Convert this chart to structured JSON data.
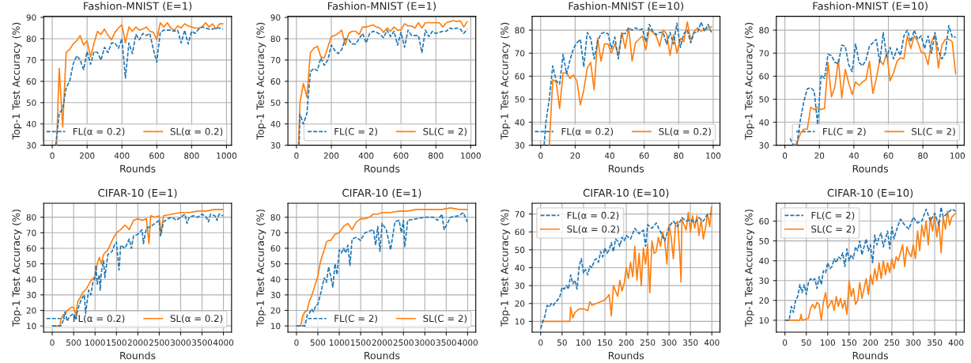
{
  "chart_data": [
    {
      "type": "line",
      "title": "Fashion-MNIST (E=1)",
      "xlabel": "Rounds",
      "ylabel": "Top-1 Test Accuracy (%)",
      "xlim": [
        -49,
        1029
      ],
      "ylim": [
        30,
        90.5
      ],
      "xticks": [
        0,
        200,
        400,
        600,
        800,
        1000
      ],
      "yticks": [
        30,
        40,
        50,
        60,
        70,
        80,
        90
      ],
      "grid": true,
      "legend": "lower right",
      "series": [
        {
          "name": "FL(α = 0.2)",
          "color": "#1f77b4",
          "line_style": "dashed",
          "x": [
            20,
            40,
            60,
            80,
            100,
            120,
            140,
            160,
            180,
            200,
            220,
            240,
            260,
            280,
            300,
            320,
            340,
            360,
            380,
            400,
            420,
            440,
            460,
            480,
            500,
            520,
            540,
            560,
            580,
            600,
            620,
            640,
            660,
            680,
            700,
            720,
            740,
            760,
            780,
            800,
            820,
            840,
            860,
            880,
            900,
            920,
            940,
            960,
            980
          ],
          "values": [
            30,
            45,
            47,
            57,
            60,
            68,
            72,
            70,
            65.5,
            74,
            68,
            74,
            73.5,
            70,
            76,
            73.5,
            78,
            78,
            75.5,
            80,
            61.5,
            78,
            73,
            82,
            79.5,
            82.5,
            81.5,
            82.5,
            75,
            69,
            83,
            84,
            84,
            84,
            83.5,
            84,
            78,
            84,
            77.5,
            83.5,
            82.5,
            84.5,
            85.5,
            85,
            84.5,
            84.5,
            85,
            85,
            84.5
          ]
        },
        {
          "name": "SL(α = 0.2)",
          "color": "#ff7f0e",
          "line_style": "solid",
          "x": [
            25,
            40,
            60,
            80,
            100,
            120,
            140,
            160,
            180,
            200,
            220,
            240,
            260,
            280,
            300,
            320,
            340,
            360,
            380,
            400,
            420,
            440,
            460,
            480,
            500,
            520,
            540,
            560,
            580,
            600,
            620,
            640,
            660,
            680,
            700,
            720,
            740,
            760,
            780,
            800,
            820,
            840,
            860,
            880,
            900,
            920,
            940,
            960,
            980
          ],
          "values": [
            30,
            66,
            38.5,
            73.5,
            75,
            77.5,
            79,
            81.5,
            77,
            79,
            71.5,
            78,
            83.5,
            82,
            84.5,
            81.5,
            79.5,
            83,
            85,
            86.5,
            78,
            85.5,
            83.5,
            85.5,
            84,
            84.5,
            85.5,
            83.5,
            83,
            79.5,
            87.5,
            85.5,
            87.5,
            85,
            84,
            86,
            85,
            87,
            86,
            85.5,
            85,
            85,
            85.5,
            87.5,
            85.5,
            87,
            84.5,
            87,
            87
          ]
        }
      ]
    },
    {
      "type": "line",
      "title": "Fashion-MNIST (E=1)",
      "xlabel": "Rounds",
      "ylabel": "Top-1 Test Accuracy (%)",
      "xlim": [
        -49,
        1029
      ],
      "ylim": [
        30,
        90.5
      ],
      "xticks": [
        0,
        200,
        400,
        600,
        800,
        1000
      ],
      "yticks": [
        30,
        40,
        50,
        60,
        70,
        80,
        90
      ],
      "grid": true,
      "legend": "lower right",
      "series": [
        {
          "name": "FL(C = 2)",
          "color": "#1f77b4",
          "line_style": "dashed",
          "x": [
            15,
            20,
            40,
            60,
            80,
            100,
            120,
            140,
            160,
            180,
            200,
            220,
            240,
            260,
            280,
            300,
            320,
            340,
            360,
            380,
            400,
            420,
            440,
            460,
            480,
            500,
            520,
            540,
            560,
            580,
            600,
            620,
            640,
            660,
            680,
            700,
            720,
            740,
            760,
            780,
            800,
            820,
            840,
            860,
            880,
            900,
            920,
            940,
            960,
            980
          ],
          "values": [
            30,
            44.5,
            40,
            45,
            64.5,
            66,
            65,
            71,
            67.5,
            70,
            77,
            74.5,
            73,
            75,
            80,
            79.5,
            77.5,
            77.5,
            80,
            82.5,
            78,
            82.5,
            83.5,
            83,
            82,
            80.5,
            84,
            81,
            83.5,
            77,
            83,
            76,
            84,
            81.5,
            81.5,
            81.5,
            73.5,
            84,
            81,
            83.5,
            82.5,
            83,
            83.5,
            83.5,
            85,
            84.5,
            85,
            84.5,
            82.5,
            84.5
          ]
        },
        {
          "name": "SL(C = 2)",
          "color": "#ff7f0e",
          "line_style": "solid",
          "x": [
            12,
            20,
            40,
            60,
            80,
            100,
            120,
            140,
            160,
            180,
            200,
            220,
            240,
            260,
            280,
            300,
            320,
            340,
            360,
            380,
            400,
            420,
            440,
            460,
            480,
            500,
            520,
            540,
            560,
            580,
            600,
            620,
            640,
            660,
            680,
            700,
            720,
            740,
            760,
            780,
            800,
            820,
            840,
            860,
            880,
            900,
            920,
            940,
            960,
            980
          ],
          "values": [
            30,
            50,
            59,
            52.5,
            73.5,
            75.5,
            76.5,
            71.5,
            71,
            76,
            81,
            81.5,
            82.5,
            84,
            77,
            82.5,
            83.5,
            83.5,
            82,
            85.5,
            85.5,
            86,
            86.5,
            85.5,
            85,
            83,
            85,
            83.5,
            85.5,
            84,
            84,
            87,
            86,
            86,
            85,
            87.5,
            85,
            87.5,
            87.5,
            87.5,
            87.5,
            87.5,
            85.5,
            87.5,
            88,
            88.5,
            88,
            88.5,
            85.5,
            88
          ]
        }
      ]
    },
    {
      "type": "line",
      "title": "Fashion-MNIST (E=10)",
      "xlabel": "Rounds",
      "ylabel": "Top-1 Test Accuracy (%)",
      "xlim": [
        -4.95,
        103.95
      ],
      "ylim": [
        30,
        86
      ],
      "xticks": [
        0,
        20,
        40,
        60,
        80,
        100
      ],
      "yticks": [
        30,
        40,
        50,
        60,
        70,
        80
      ],
      "grid": true,
      "legend": "lower right",
      "series": [
        {
          "name": "FL(α = 0.2)",
          "color": "#1f77b4",
          "line_style": "dashed",
          "x": [
            2,
            3,
            5,
            7,
            9,
            11,
            13,
            15,
            17,
            19,
            21,
            23,
            25,
            27,
            29,
            31,
            33,
            35,
            37,
            39,
            41,
            43,
            45,
            47,
            49,
            51,
            53,
            55,
            57,
            59,
            61,
            63,
            65,
            67,
            69,
            71,
            73,
            75,
            77,
            79,
            81,
            83,
            85,
            87,
            89,
            91,
            93,
            95,
            97,
            99
          ],
          "values": [
            30,
            40,
            50,
            64.5,
            58,
            56.5,
            69.5,
            61,
            67,
            72,
            74.5,
            76,
            64,
            79,
            76.5,
            67.5,
            75,
            78.5,
            79,
            78.5,
            72,
            77,
            67.5,
            78.5,
            78.5,
            81,
            80,
            81,
            80,
            80.5,
            75,
            82.5,
            79.5,
            78,
            79,
            79,
            74,
            79,
            74,
            83,
            72.5,
            78.5,
            80,
            74.5,
            79,
            79,
            83.5,
            79.5,
            82.5,
            79
          ]
        },
        {
          "name": "SL(α = 0.2)",
          "color": "#ff7f0e",
          "line_style": "solid",
          "x": [
            5,
            7,
            9,
            11,
            13,
            15,
            17,
            19,
            21,
            23,
            25,
            27,
            29,
            31,
            33,
            35,
            37,
            39,
            41,
            43,
            45,
            47,
            49,
            51,
            53,
            55,
            57,
            59,
            61,
            63,
            65,
            67,
            69,
            71,
            73,
            75,
            77,
            79,
            81,
            83,
            85,
            87,
            89,
            91,
            93,
            95,
            97,
            99
          ],
          "values": [
            30,
            58.5,
            57.5,
            46,
            61.5,
            61.5,
            59,
            60.5,
            58,
            47.5,
            54,
            63.5,
            66,
            54,
            76.5,
            66.5,
            74,
            74,
            70,
            74,
            69,
            79,
            72,
            81,
            66.5,
            74.5,
            76,
            77.5,
            71.5,
            80.5,
            79,
            77.5,
            73,
            80,
            78.5,
            69,
            78,
            70,
            76.5,
            75,
            83.5,
            75.5,
            79.5,
            81,
            79.5,
            80.5,
            80.5,
            81.5
          ]
        }
      ]
    },
    {
      "type": "line",
      "title": "Fashion-MNIST (E=10)",
      "xlabel": "Rounds",
      "ylabel": "Top-1 Test Accuracy (%)",
      "xlim": [
        -4.95,
        103.95
      ],
      "ylim": [
        30,
        86
      ],
      "xticks": [
        0,
        20,
        40,
        60,
        80,
        100
      ],
      "yticks": [
        30,
        40,
        50,
        60,
        70,
        80
      ],
      "grid": true,
      "legend": "lower right",
      "series": [
        {
          "name": "FL(C = 2)",
          "color": "#1f77b4",
          "line_style": "dashed",
          "x": [
            3,
            5,
            7,
            9,
            11,
            13,
            15,
            17,
            19,
            21,
            23,
            25,
            27,
            29,
            31,
            33,
            35,
            37,
            39,
            41,
            43,
            45,
            47,
            49,
            51,
            53,
            55,
            57,
            59,
            61,
            63,
            65,
            67,
            69,
            71,
            73,
            75,
            77,
            79,
            81,
            83,
            85,
            87,
            89,
            91,
            93,
            95,
            97,
            99
          ],
          "values": [
            33,
            30,
            30.5,
            41,
            49,
            54.5,
            55,
            53.5,
            39,
            60.5,
            59,
            69.5,
            69,
            66,
            65.5,
            73.5,
            73,
            65,
            62,
            74,
            66,
            64.5,
            67,
            73,
            74.5,
            76,
            66,
            79,
            68.5,
            72.5,
            67.5,
            72,
            69,
            77.5,
            80,
            75,
            80,
            76,
            77.5,
            72,
            77.5,
            70,
            79,
            71,
            67.5,
            70,
            82,
            77,
            77
          ]
        },
        {
          "name": "SL(C = 2)",
          "color": "#ff7f0e",
          "line_style": "solid",
          "x": [
            6,
            7,
            9,
            11,
            13,
            15,
            17,
            19,
            21,
            23,
            25,
            27,
            29,
            31,
            33,
            35,
            37,
            39,
            41,
            43,
            45,
            47,
            49,
            51,
            53,
            55,
            57,
            59,
            61,
            63,
            65,
            67,
            69,
            71,
            73,
            75,
            77,
            79,
            81,
            83,
            85,
            87,
            89,
            91,
            93,
            95,
            97,
            99
          ],
          "values": [
            30,
            31,
            35,
            37,
            37,
            46.5,
            45.5,
            46.5,
            45.5,
            46,
            66,
            51,
            55.5,
            67,
            50.5,
            63,
            57,
            52,
            57.5,
            56,
            57.5,
            58.5,
            66.5,
            52.5,
            59,
            67,
            65,
            70,
            58,
            61.5,
            66.5,
            68,
            67.5,
            77.5,
            72,
            77.5,
            75,
            70.5,
            70,
            65,
            75,
            78,
            63.5,
            73.5,
            76,
            76,
            75,
            61
          ]
        }
      ]
    },
    {
      "type": "line",
      "title": "CIFAR-10 (E=1)",
      "xlabel": "Rounds",
      "ylabel": "Top-1 Test Accuracy (%)",
      "xlim": [
        -200,
        4190
      ],
      "ylim": [
        6,
        89
      ],
      "xticks": [
        0,
        500,
        1000,
        1500,
        2000,
        2500,
        3000,
        3500,
        4000
      ],
      "yticks": [
        10,
        20,
        30,
        40,
        50,
        60,
        70,
        80
      ],
      "grid": true,
      "legend": "lower right",
      "series": [
        {
          "name": "FL(α = 0.2)",
          "color": "#1f77b4",
          "line_style": "dashed",
          "x": [
            0,
            100,
            200,
            250,
            300,
            350,
            400,
            450,
            500,
            550,
            600,
            650,
            700,
            750,
            780,
            850,
            900,
            950,
            1000,
            1020,
            1050,
            1100,
            1120,
            1150,
            1200,
            1230,
            1300,
            1400,
            1450,
            1500,
            1560,
            1600,
            1700,
            1800,
            1850,
            1900,
            2000,
            2100,
            2130,
            2200,
            2300,
            2400,
            2500,
            2530,
            2600,
            2700,
            2800,
            2900,
            3000,
            3100,
            3150,
            3200,
            3300,
            3400,
            3500,
            3600,
            3650,
            3700,
            3800,
            3850,
            3900,
            3990
          ],
          "values": [
            10,
            10,
            10,
            13,
            19,
            13,
            16,
            17,
            18,
            14,
            21,
            25,
            28,
            30,
            18,
            33,
            30,
            38,
            41,
            49,
            37,
            43,
            33,
            45,
            52,
            41,
            56,
            58,
            62,
            64,
            46,
            62,
            60,
            66,
            60,
            68,
            69,
            72,
            63,
            73,
            74,
            76,
            78,
            68,
            77,
            79,
            80,
            78,
            80,
            82,
            76,
            80,
            81,
            80,
            82,
            80,
            77,
            82,
            81,
            78,
            82,
            81
          ]
        },
        {
          "name": "SL(α = 0.2)",
          "color": "#ff7f0e",
          "line_style": "solid",
          "x": [
            0,
            100,
            180,
            200,
            250,
            300,
            350,
            400,
            450,
            500,
            550,
            600,
            650,
            700,
            800,
            900,
            1000,
            1050,
            1100,
            1150,
            1200,
            1300,
            1400,
            1500,
            1600,
            1700,
            1800,
            1900,
            2000,
            2100,
            2200,
            2260,
            2300,
            2400,
            2500,
            2540,
            2600,
            2800,
            3000,
            3200,
            3400,
            3600,
            3800,
            3990
          ],
          "values": [
            10,
            10,
            10,
            14,
            17,
            18,
            20,
            21,
            22,
            22,
            17,
            26,
            28,
            31,
            34,
            39,
            42,
            50,
            54,
            50,
            56,
            59,
            65,
            70,
            72,
            75,
            72,
            78,
            79,
            78,
            79,
            63,
            81,
            80,
            81,
            69,
            81,
            82,
            83,
            83,
            84,
            84,
            85,
            85
          ]
        }
      ]
    },
    {
      "type": "line",
      "title": "CIFAR-10 (E=1)",
      "xlabel": "Rounds",
      "ylabel": "Top-1 Test Accuracy (%)",
      "xlim": [
        -200,
        4190
      ],
      "ylim": [
        6,
        89
      ],
      "xticks": [
        0,
        500,
        1000,
        1500,
        2000,
        2500,
        3000,
        3500,
        4000
      ],
      "yticks": [
        10,
        20,
        30,
        40,
        50,
        60,
        70,
        80
      ],
      "grid": true,
      "legend": "lower right",
      "series": [
        {
          "name": "FL(C = 2)",
          "color": "#1f77b4",
          "line_style": "dashed",
          "x": [
            0,
            100,
            200,
            250,
            300,
            350,
            400,
            450,
            500,
            550,
            600,
            650,
            700,
            750,
            800,
            850,
            900,
            950,
            1000,
            1050,
            1100,
            1150,
            1200,
            1250,
            1300,
            1400,
            1500,
            1600,
            1700,
            1800,
            1850,
            1900,
            1950,
            2000,
            2100,
            2200,
            2300,
            2400,
            2450,
            2500,
            2530,
            2600,
            2800,
            3000,
            3200,
            3300,
            3400,
            3450,
            3600,
            3800,
            3900,
            3990
          ],
          "values": [
            10,
            10,
            10,
            17,
            18,
            21,
            19,
            23,
            24,
            29,
            35,
            41,
            38,
            48,
            42,
            35,
            50,
            43,
            59,
            57,
            60,
            57,
            62,
            49,
            66,
            67,
            65,
            70,
            71,
            72,
            62,
            74,
            58,
            76,
            72,
            59,
            77,
            78,
            70,
            78,
            61,
            78,
            79,
            80,
            80,
            78,
            82,
            72,
            80,
            81,
            83,
            77
          ]
        },
        {
          "name": "SL(C = 2)",
          "color": "#ff7f0e",
          "line_style": "solid",
          "x": [
            0,
            100,
            150,
            200,
            250,
            300,
            350,
            400,
            450,
            500,
            550,
            600,
            650,
            700,
            750,
            800,
            900,
            1000,
            1100,
            1200,
            1300,
            1400,
            1500,
            1600,
            1700,
            1800,
            1900,
            2000,
            2200,
            2400,
            2600,
            2800,
            3000,
            3200,
            3400,
            3600,
            3800,
            3990
          ],
          "values": [
            10,
            10,
            17,
            19,
            20,
            26,
            29,
            33,
            38,
            42,
            50,
            55,
            59,
            64,
            65,
            65,
            69,
            70,
            74,
            76,
            72,
            77,
            79,
            79,
            80,
            82,
            82,
            83,
            83,
            84,
            84,
            85,
            85,
            85,
            85,
            86,
            85,
            85
          ]
        }
      ]
    },
    {
      "type": "line",
      "title": "CIFAR-10 (E=10)",
      "xlabel": "Rounds",
      "ylabel": "Top-1 Test Accuracy (%)",
      "xlim": [
        -20,
        419
      ],
      "ylim": [
        4,
        76
      ],
      "xticks": [
        0,
        50,
        100,
        150,
        200,
        250,
        300,
        350,
        400
      ],
      "yticks": [
        10,
        20,
        30,
        40,
        50,
        60,
        70
      ],
      "grid": true,
      "legend": "upper left",
      "series": [
        {
          "name": "FL(α = 0.2)",
          "color": "#1f77b4",
          "line_style": "dashed",
          "x": [
            0,
            5,
            10,
            15,
            20,
            25,
            30,
            35,
            40,
            45,
            50,
            55,
            60,
            65,
            70,
            75,
            80,
            85,
            90,
            95,
            100,
            105,
            110,
            115,
            120,
            125,
            130,
            135,
            140,
            145,
            150,
            155,
            160,
            165,
            170,
            175,
            180,
            185,
            190,
            195,
            200,
            210,
            220,
            230,
            240,
            245,
            250,
            260,
            270,
            280,
            290,
            300,
            310,
            320,
            330,
            340,
            350,
            360,
            370,
            380,
            390,
            399
          ],
          "values": [
            6,
            10,
            13,
            19,
            18,
            20,
            19,
            21,
            22,
            24,
            29,
            28,
            30,
            28,
            36,
            31,
            33,
            28,
            41,
            45,
            37,
            39,
            36,
            41,
            40,
            44,
            45,
            43,
            49,
            46,
            51,
            48,
            50,
            54,
            49,
            56,
            55,
            52,
            57,
            55,
            58,
            56,
            62,
            59,
            61,
            52,
            64,
            62,
            65,
            60,
            55,
            63,
            66,
            63,
            68,
            66,
            67,
            65,
            68,
            66,
            70,
            70
          ]
        },
        {
          "name": "SL(α = 0.2)",
          "color": "#ff7f0e",
          "line_style": "solid",
          "x": [
            0,
            68,
            70,
            75,
            80,
            90,
            100,
            110,
            115,
            120,
            130,
            140,
            150,
            160,
            165,
            170,
            175,
            180,
            185,
            190,
            195,
            200,
            205,
            210,
            215,
            220,
            225,
            230,
            235,
            240,
            245,
            250,
            255,
            260,
            265,
            270,
            275,
            280,
            285,
            290,
            295,
            300,
            305,
            310,
            315,
            320,
            325,
            328,
            330,
            340,
            345,
            350,
            355,
            360,
            365,
            370,
            375,
            380,
            385,
            390,
            395,
            399
          ],
          "values": [
            10,
            10,
            18,
            12,
            15,
            17,
            17,
            16,
            21,
            19,
            20,
            21,
            22,
            25,
            13,
            30,
            27,
            24,
            33,
            27,
            31,
            40,
            34,
            43,
            35,
            52,
            33,
            48,
            30,
            51,
            42,
            53,
            26,
            55,
            48,
            49,
            57,
            52,
            60,
            55,
            42,
            64,
            57,
            45,
            64,
            66,
            48,
            32,
            67,
            61,
            71,
            60,
            69,
            62,
            69,
            58,
            67,
            56,
            62,
            70,
            63,
            74
          ]
        }
      ]
    },
    {
      "type": "line",
      "title": "CIFAR-10 (E=10)",
      "xlabel": "Rounds",
      "ylabel": "Top-1 Test Accuracy (%)",
      "xlim": [
        -20,
        419
      ],
      "ylim": [
        4,
        69
      ],
      "xticks": [
        0,
        50,
        100,
        150,
        200,
        250,
        300,
        350,
        400
      ],
      "yticks": [
        10,
        20,
        30,
        40,
        50,
        60
      ],
      "grid": true,
      "legend": "upper left",
      "series": [
        {
          "name": "FL(C = 2)",
          "color": "#1f77b4",
          "line_style": "dashed",
          "x": [
            0,
            10,
            15,
            20,
            25,
            30,
            35,
            40,
            45,
            50,
            55,
            60,
            65,
            70,
            75,
            80,
            85,
            90,
            95,
            100,
            105,
            110,
            115,
            120,
            125,
            130,
            135,
            140,
            145,
            150,
            155,
            160,
            165,
            170,
            175,
            180,
            185,
            190,
            195,
            200,
            205,
            210,
            215,
            220,
            225,
            230,
            240,
            245,
            250,
            255,
            260,
            270,
            280,
            290,
            300,
            310,
            320,
            330,
            340,
            350,
            360,
            365,
            370,
            380,
            390,
            399
          ],
          "values": [
            10,
            10,
            17,
            14,
            20,
            22,
            28,
            24,
            28,
            23,
            29,
            31,
            30,
            31,
            26,
            32,
            28,
            35,
            34,
            39,
            36,
            37,
            41,
            39,
            42,
            41,
            44,
            37,
            46,
            40,
            43,
            41,
            47,
            45,
            50,
            43,
            47,
            51,
            45,
            48,
            39,
            53,
            48,
            52,
            54,
            47,
            55,
            46,
            57,
            51,
            55,
            61,
            58,
            56,
            62,
            59,
            60,
            66,
            60,
            64,
            58,
            67,
            62,
            64,
            66,
            65
          ]
        },
        {
          "name": "SL(C = 2)",
          "color": "#ff7f0e",
          "line_style": "solid",
          "x": [
            0,
            35,
            38,
            40,
            55,
            60,
            65,
            70,
            75,
            80,
            85,
            90,
            95,
            100,
            110,
            115,
            120,
            125,
            130,
            135,
            140,
            145,
            150,
            155,
            160,
            165,
            170,
            175,
            180,
            185,
            190,
            195,
            200,
            205,
            210,
            215,
            220,
            225,
            230,
            235,
            240,
            245,
            250,
            255,
            260,
            265,
            270,
            275,
            280,
            285,
            290,
            295,
            300,
            305,
            310,
            315,
            320,
            325,
            330,
            335,
            340,
            345,
            350,
            355,
            360,
            365,
            370,
            375,
            380,
            385,
            390,
            399
          ],
          "values": [
            10,
            10,
            13,
            10,
            11,
            16,
            18,
            16,
            19,
            18,
            10,
            19,
            24,
            16,
            20,
            15,
            22,
            17,
            21,
            16,
            20,
            13,
            30,
            22,
            26,
            18,
            20,
            29,
            21,
            26,
            31,
            23,
            33,
            28,
            36,
            30,
            39,
            31,
            40,
            33,
            39,
            34,
            41,
            36,
            42,
            40,
            44,
            48,
            37,
            47,
            44,
            42,
            48,
            41,
            55,
            45,
            58,
            52,
            60,
            48,
            62,
            55,
            63,
            52,
            60,
            44,
            62,
            56,
            65,
            58,
            62,
            64
          ]
        }
      ]
    }
  ]
}
